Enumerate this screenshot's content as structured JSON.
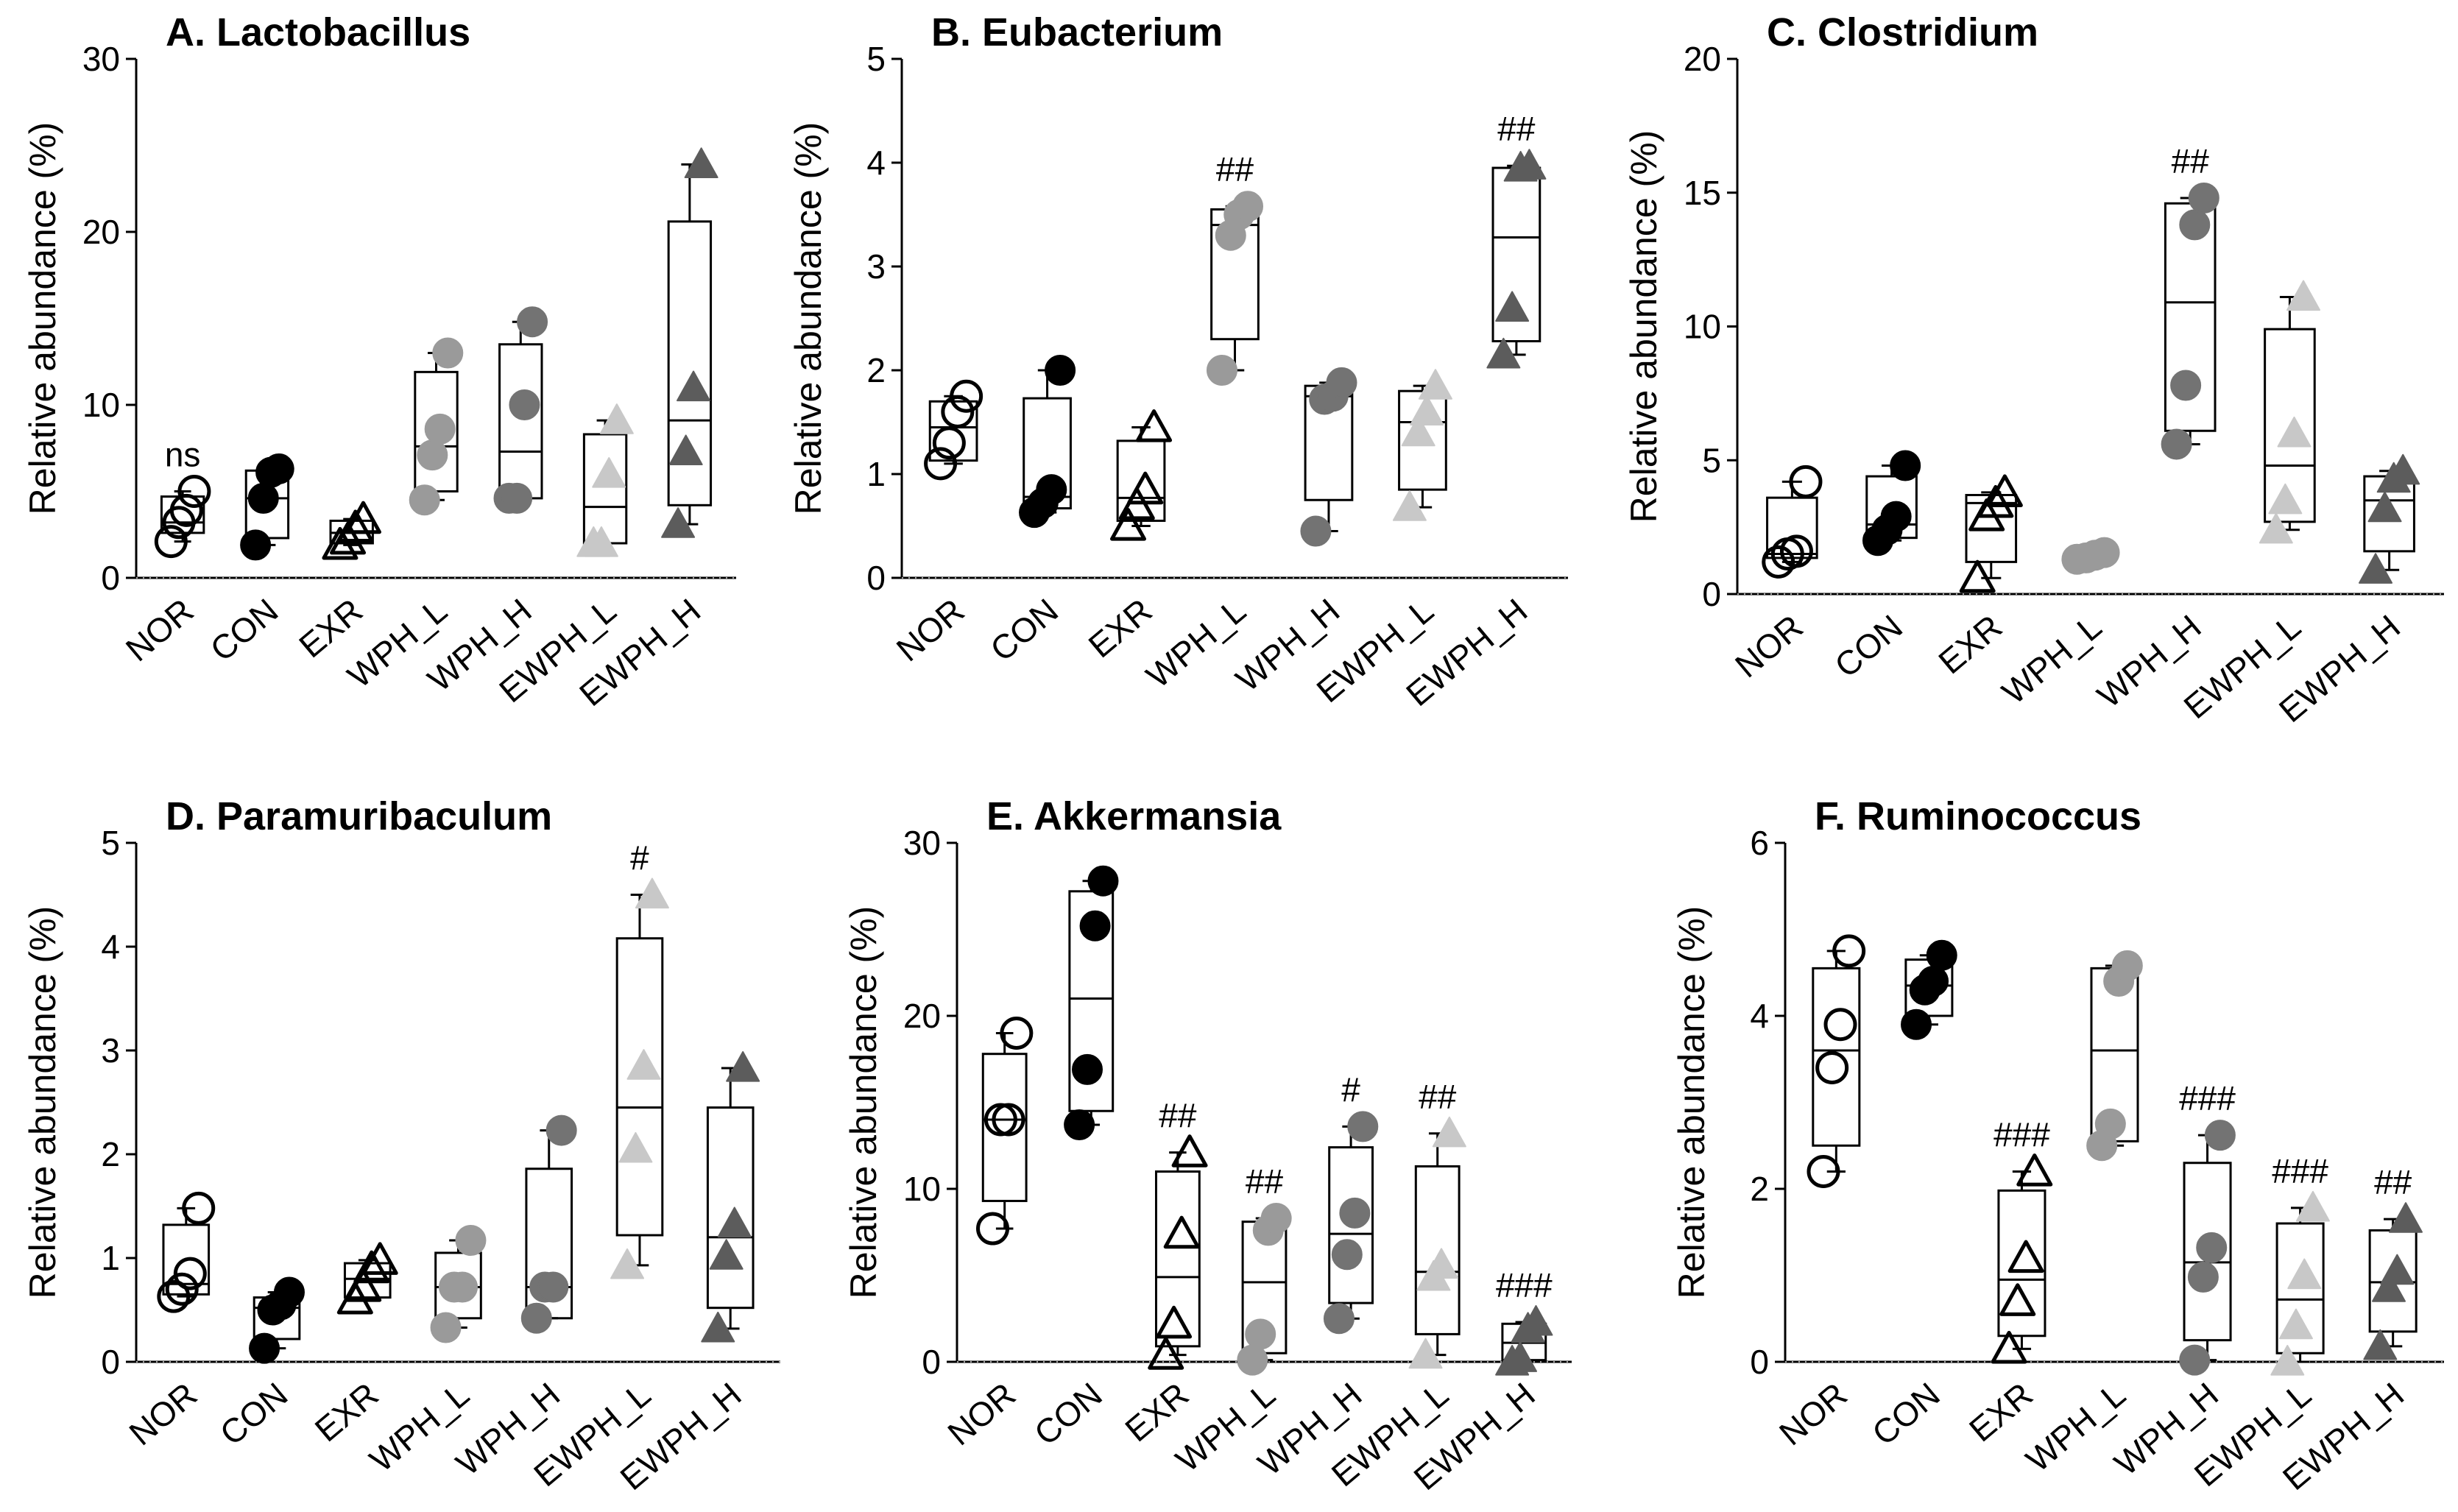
{
  "chart_data": [
    {
      "type": "box",
      "title": "A. Lactobacillus",
      "ylabel": "Relative abundance (%)",
      "ylim": [
        0,
        30
      ],
      "yticks": [
        "0",
        "10",
        "20",
        "30"
      ],
      "categories": [
        "NOR",
        "CON",
        "EXR",
        "WPH_L",
        "WPH_H",
        "EWPH_L",
        "EWPH_H"
      ],
      "series": [
        {
          "name": "NOR",
          "marker": "open-circle",
          "color": "#000000",
          "box": {
            "min": 2.1,
            "q1": 2.6,
            "median": 3.2,
            "q3": 4.7,
            "max": 5.0
          },
          "points": [
            2.1,
            3.2,
            3.9,
            5.0
          ],
          "annotation": "ns"
        },
        {
          "name": "CON",
          "marker": "filled-circle",
          "color": "#000000",
          "box": {
            "min": 1.9,
            "q1": 2.3,
            "median": 4.6,
            "q3": 6.2,
            "max": 6.3
          },
          "points": [
            1.9,
            4.6,
            6.1,
            6.3
          ],
          "annotation": ""
        },
        {
          "name": "EXR",
          "marker": "open-triangle",
          "color": "#000000",
          "box": {
            "min": 1.9,
            "q1": 2.0,
            "median": 2.6,
            "q3": 3.3,
            "max": 3.4
          },
          "points": [
            1.9,
            2.2,
            2.9,
            3.4
          ],
          "annotation": ""
        },
        {
          "name": "WPH_L",
          "marker": "filled-circle",
          "color": "#9a9a9a",
          "box": {
            "min": 4.5,
            "q1": 5.0,
            "median": 7.6,
            "q3": 11.9,
            "max": 13.0
          },
          "points": [
            4.5,
            7.1,
            8.6,
            13.0
          ],
          "annotation": ""
        },
        {
          "name": "WPH_H",
          "marker": "filled-circle",
          "color": "#737373",
          "box": {
            "min": 4.6,
            "q1": 4.6,
            "median": 7.3,
            "q3": 13.5,
            "max": 14.8
          },
          "points": [
            4.6,
            4.6,
            10.0,
            14.8
          ],
          "annotation": ""
        },
        {
          "name": "EWPH_L",
          "marker": "filled-triangle",
          "color": "#c8c8c8",
          "box": {
            "min": 2.0,
            "q1": 2.0,
            "median": 4.1,
            "q3": 8.3,
            "max": 9.1
          },
          "points": [
            2.0,
            2.0,
            6.0,
            9.1
          ],
          "annotation": ""
        },
        {
          "name": "EWPH_H",
          "marker": "filled-triangle",
          "color": "#5c5c5c",
          "box": {
            "min": 3.1,
            "q1": 4.2,
            "median": 9.1,
            "q3": 20.6,
            "max": 23.9
          },
          "points": [
            3.1,
            7.3,
            11.0,
            23.9
          ],
          "annotation": ""
        }
      ]
    },
    {
      "type": "box",
      "title": "B. Eubacterium",
      "ylabel": "Relative abundance (%)",
      "ylim": [
        0,
        5
      ],
      "yticks": [
        "0",
        "1",
        "2",
        "3",
        "4",
        "5"
      ],
      "categories": [
        "NOR",
        "CON",
        "EXR",
        "WPH_L",
        "WPH_H",
        "EWPH_L",
        "EWPH_H"
      ],
      "series": [
        {
          "name": "NOR",
          "marker": "open-circle",
          "color": "#000000",
          "box": {
            "min": 1.1,
            "q1": 1.13,
            "median": 1.45,
            "q3": 1.7,
            "max": 1.75
          },
          "points": [
            1.1,
            1.3,
            1.6,
            1.75
          ],
          "annotation": ""
        },
        {
          "name": "CON",
          "marker": "filled-circle",
          "color": "#000000",
          "box": {
            "min": 0.63,
            "q1": 0.67,
            "median": 0.78,
            "q3": 1.73,
            "max": 2.0
          },
          "points": [
            0.63,
            0.72,
            0.85,
            2.0
          ],
          "annotation": ""
        },
        {
          "name": "EXR",
          "marker": "open-triangle",
          "color": "#000000",
          "box": {
            "min": 0.5,
            "q1": 0.55,
            "median": 0.77,
            "q3": 1.32,
            "max": 1.45
          },
          "points": [
            0.5,
            0.7,
            0.85,
            1.45
          ],
          "annotation": ""
        },
        {
          "name": "WPH_L",
          "marker": "filled-circle",
          "color": "#9a9a9a",
          "box": {
            "min": 2.0,
            "q1": 2.3,
            "median": 3.4,
            "q3": 3.55,
            "max": 3.58
          },
          "points": [
            2.0,
            3.3,
            3.5,
            3.58
          ],
          "annotation": "##"
        },
        {
          "name": "WPH_H",
          "marker": "filled-circle",
          "color": "#737373",
          "box": {
            "min": 0.45,
            "q1": 0.75,
            "median": 1.75,
            "q3": 1.85,
            "max": 1.88
          },
          "points": [
            0.45,
            1.72,
            1.75,
            1.88
          ],
          "annotation": ""
        },
        {
          "name": "EWPH_L",
          "marker": "filled-triangle",
          "color": "#c8c8c8",
          "box": {
            "min": 0.68,
            "q1": 0.85,
            "median": 1.5,
            "q3": 1.8,
            "max": 1.85
          },
          "points": [
            0.68,
            1.4,
            1.6,
            1.85
          ],
          "annotation": ""
        },
        {
          "name": "EWPH_H",
          "marker": "filled-triangle",
          "color": "#5c5c5c",
          "box": {
            "min": 2.15,
            "q1": 2.28,
            "median": 3.28,
            "q3": 3.95,
            "max": 3.97
          },
          "points": [
            2.15,
            2.6,
            3.95,
            3.97
          ],
          "annotation": "##"
        }
      ]
    },
    {
      "type": "box",
      "title": "C. Clostridium",
      "ylabel": "Relative abundance (%)",
      "ylim": [
        0,
        20
      ],
      "yticks": [
        "0",
        "5",
        "10",
        "15",
        "20"
      ],
      "categories": [
        "NOR",
        "CON",
        "EXR",
        "WPH_L",
        "WPH_H",
        "EWPH_L",
        "EWPH_H"
      ],
      "series": [
        {
          "name": "NOR",
          "marker": "open-circle",
          "color": "#000000",
          "box": {
            "min": 1.2,
            "q1": 1.35,
            "median": 1.5,
            "q3": 3.6,
            "max": 4.2
          },
          "points": [
            1.2,
            1.5,
            1.6,
            4.2
          ],
          "annotation": ""
        },
        {
          "name": "CON",
          "marker": "filled-circle",
          "color": "#000000",
          "box": {
            "min": 2.0,
            "q1": 2.1,
            "median": 2.6,
            "q3": 4.4,
            "max": 4.8
          },
          "points": [
            2.0,
            2.4,
            2.9,
            4.8
          ],
          "annotation": ""
        },
        {
          "name": "EXR",
          "marker": "open-triangle",
          "color": "#000000",
          "box": {
            "min": 0.6,
            "q1": 1.2,
            "median": 3.4,
            "q3": 3.7,
            "max": 3.8
          },
          "points": [
            0.6,
            2.9,
            3.4,
            3.8
          ],
          "annotation": ""
        },
        {
          "name": "WPH_L",
          "marker": "filled-circle",
          "color": "#9a9a9a",
          "box": {
            "min": 1.3,
            "q1": 1.32,
            "median": 1.4,
            "q3": 1.5,
            "max": 1.55
          },
          "points": [
            1.3,
            1.35,
            1.45,
            1.55
          ],
          "annotation": ""
        },
        {
          "name": "WPH_H",
          "marker": "filled-circle",
          "color": "#737373",
          "box": {
            "min": 5.6,
            "q1": 6.1,
            "median": 10.9,
            "q3": 14.6,
            "max": 14.8
          },
          "points": [
            5.6,
            7.8,
            13.8,
            14.8
          ],
          "annotation": "##"
        },
        {
          "name": "EWPH_L",
          "marker": "filled-triangle",
          "color": "#c8c8c8",
          "box": {
            "min": 2.4,
            "q1": 2.7,
            "median": 4.8,
            "q3": 9.9,
            "max": 11.1
          },
          "points": [
            2.4,
            3.5,
            6.0,
            11.1
          ],
          "annotation": ""
        },
        {
          "name": "EWPH_H",
          "marker": "filled-triangle",
          "color": "#5c5c5c",
          "box": {
            "min": 0.9,
            "q1": 1.6,
            "median": 3.5,
            "q3": 4.4,
            "max": 4.6
          },
          "points": [
            0.9,
            3.2,
            4.3,
            4.6
          ],
          "annotation": ""
        }
      ]
    },
    {
      "type": "box",
      "title": "D. Paramuribaculum",
      "ylabel": "Relative abundance (%)",
      "ylim": [
        0,
        5
      ],
      "yticks": [
        "0",
        "1",
        "2",
        "3",
        "4",
        "5"
      ],
      "categories": [
        "NOR",
        "CON",
        "EXR",
        "WPH_L",
        "WPH_H",
        "EWPH_L",
        "EWPH_H"
      ],
      "series": [
        {
          "name": "NOR",
          "marker": "open-circle",
          "color": "#000000",
          "box": {
            "min": 0.63,
            "q1": 0.65,
            "median": 0.75,
            "q3": 1.32,
            "max": 1.48
          },
          "points": [
            0.63,
            0.7,
            0.85,
            1.48
          ],
          "annotation": ""
        },
        {
          "name": "CON",
          "marker": "filled-circle",
          "color": "#000000",
          "box": {
            "min": 0.13,
            "q1": 0.22,
            "median": 0.52,
            "q3": 0.62,
            "max": 0.67
          },
          "points": [
            0.13,
            0.5,
            0.55,
            0.67
          ],
          "annotation": ""
        },
        {
          "name": "EXR",
          "marker": "open-triangle",
          "color": "#000000",
          "box": {
            "min": 0.6,
            "q1": 0.62,
            "median": 0.8,
            "q3": 0.95,
            "max": 0.98
          },
          "points": [
            0.6,
            0.72,
            0.9,
            0.98
          ],
          "annotation": ""
        },
        {
          "name": "WPH_L",
          "marker": "filled-circle",
          "color": "#9a9a9a",
          "box": {
            "min": 0.33,
            "q1": 0.42,
            "median": 0.72,
            "q3": 1.05,
            "max": 1.17
          },
          "points": [
            0.33,
            0.72,
            0.72,
            1.17
          ],
          "annotation": ""
        },
        {
          "name": "WPH_H",
          "marker": "filled-circle",
          "color": "#737373",
          "box": {
            "min": 0.42,
            "q1": 0.42,
            "median": 0.72,
            "q3": 1.86,
            "max": 2.23
          },
          "points": [
            0.42,
            0.72,
            0.72,
            2.23
          ],
          "annotation": ""
        },
        {
          "name": "EWPH_L",
          "marker": "filled-triangle",
          "color": "#c8c8c8",
          "box": {
            "min": 0.93,
            "q1": 1.22,
            "median": 2.45,
            "q3": 4.08,
            "max": 4.5
          },
          "points": [
            0.93,
            2.05,
            2.85,
            4.5
          ],
          "annotation": "#"
        },
        {
          "name": "EWPH_H",
          "marker": "filled-triangle",
          "color": "#5c5c5c",
          "box": {
            "min": 0.32,
            "q1": 0.52,
            "median": 1.2,
            "q3": 2.45,
            "max": 2.83
          },
          "points": [
            0.32,
            1.02,
            1.33,
            2.83
          ],
          "annotation": ""
        }
      ]
    },
    {
      "type": "box",
      "title": "E. Akkermansia",
      "ylabel": "Relative abundance (%)",
      "ylim": [
        0,
        30
      ],
      "yticks": [
        "0",
        "10",
        "20",
        "30"
      ],
      "categories": [
        "NOR",
        "CON",
        "EXR",
        "WPH_L",
        "WPH_H",
        "EWPH_L",
        "EWPH_H"
      ],
      "series": [
        {
          "name": "NOR",
          "marker": "open-circle",
          "color": "#000000",
          "box": {
            "min": 7.7,
            "q1": 9.3,
            "median": 14.0,
            "q3": 17.8,
            "max": 19.0
          },
          "points": [
            7.7,
            14.0,
            14.0,
            19.0
          ],
          "annotation": ""
        },
        {
          "name": "CON",
          "marker": "filled-circle",
          "color": "#000000",
          "box": {
            "min": 13.7,
            "q1": 14.5,
            "median": 21.0,
            "q3": 27.2,
            "max": 27.8
          },
          "points": [
            13.7,
            16.9,
            25.2,
            27.8
          ],
          "annotation": ""
        },
        {
          "name": "EXR",
          "marker": "open-triangle",
          "color": "#000000",
          "box": {
            "min": 0.4,
            "q1": 0.9,
            "median": 4.9,
            "q3": 11.0,
            "max": 12.1
          },
          "points": [
            0.4,
            2.2,
            7.4,
            12.1
          ],
          "annotation": "##"
        },
        {
          "name": "WPH_L",
          "marker": "filled-circle",
          "color": "#9a9a9a",
          "box": {
            "min": 0.1,
            "q1": 0.5,
            "median": 4.6,
            "q3": 8.1,
            "max": 8.3
          },
          "points": [
            0.1,
            1.6,
            7.6,
            8.3
          ],
          "annotation": "##"
        },
        {
          "name": "WPH_H",
          "marker": "filled-circle",
          "color": "#737373",
          "box": {
            "min": 2.5,
            "q1": 3.4,
            "median": 7.4,
            "q3": 12.4,
            "max": 13.6
          },
          "points": [
            2.5,
            6.2,
            8.6,
            13.6
          ],
          "annotation": "#"
        },
        {
          "name": "EWPH_L",
          "marker": "filled-triangle",
          "color": "#c8c8c8",
          "box": {
            "min": 0.4,
            "q1": 1.6,
            "median": 5.2,
            "q3": 11.3,
            "max": 13.2
          },
          "points": [
            0.4,
            4.9,
            5.6,
            13.2
          ],
          "annotation": "##"
        },
        {
          "name": "EWPH_H",
          "marker": "filled-triangle",
          "color": "#5c5c5c",
          "box": {
            "min": 0.0,
            "q1": 0.1,
            "median": 1.1,
            "q3": 2.2,
            "max": 2.3
          },
          "points": [
            0.0,
            0.2,
            1.9,
            2.3
          ],
          "annotation": "###"
        }
      ]
    },
    {
      "type": "box",
      "title": "F. Ruminococcus",
      "ylabel": "Relative abundance (%)",
      "ylim": [
        0,
        6
      ],
      "yticks": [
        "0",
        "2",
        "4",
        "6"
      ],
      "categories": [
        "NOR",
        "CON",
        "EXR",
        "WPH_L",
        "WPH_H",
        "EWPH_L",
        "EWPH_H"
      ],
      "series": [
        {
          "name": "NOR",
          "marker": "open-circle",
          "color": "#000000",
          "box": {
            "min": 2.2,
            "q1": 2.5,
            "median": 3.6,
            "q3": 4.55,
            "max": 4.75
          },
          "points": [
            2.2,
            3.4,
            3.9,
            4.75
          ],
          "annotation": ""
        },
        {
          "name": "CON",
          "marker": "filled-circle",
          "color": "#000000",
          "box": {
            "min": 3.9,
            "q1": 4.0,
            "median": 4.35,
            "q3": 4.65,
            "max": 4.7
          },
          "points": [
            3.9,
            4.3,
            4.4,
            4.7
          ],
          "annotation": ""
        },
        {
          "name": "EXR",
          "marker": "open-triangle",
          "color": "#000000",
          "box": {
            "min": 0.15,
            "q1": 0.3,
            "median": 0.95,
            "q3": 1.98,
            "max": 2.2
          },
          "points": [
            0.15,
            0.7,
            1.2,
            2.2
          ],
          "annotation": "###"
        },
        {
          "name": "WPH_L",
          "marker": "filled-circle",
          "color": "#9a9a9a",
          "box": {
            "min": 2.5,
            "q1": 2.55,
            "median": 3.6,
            "q3": 4.55,
            "max": 4.58
          },
          "points": [
            2.5,
            2.75,
            4.4,
            4.58
          ],
          "annotation": ""
        },
        {
          "name": "WPH_H",
          "marker": "filled-circle",
          "color": "#737373",
          "box": {
            "min": 0.02,
            "q1": 0.25,
            "median": 1.15,
            "q3": 2.3,
            "max": 2.62
          },
          "points": [
            0.02,
            0.98,
            1.32,
            2.62
          ],
          "annotation": "###"
        },
        {
          "name": "EWPH_L",
          "marker": "filled-triangle",
          "color": "#c8c8c8",
          "box": {
            "min": 0.0,
            "q1": 0.1,
            "median": 0.72,
            "q3": 1.6,
            "max": 1.78
          },
          "points": [
            0.0,
            0.42,
            1.0,
            1.78
          ],
          "annotation": "###"
        },
        {
          "name": "EWPH_H",
          "marker": "filled-triangle",
          "color": "#5c5c5c",
          "box": {
            "min": 0.18,
            "q1": 0.35,
            "median": 0.92,
            "q3": 1.52,
            "max": 1.65
          },
          "points": [
            0.18,
            0.85,
            1.05,
            1.65
          ],
          "annotation": "##"
        }
      ]
    }
  ]
}
